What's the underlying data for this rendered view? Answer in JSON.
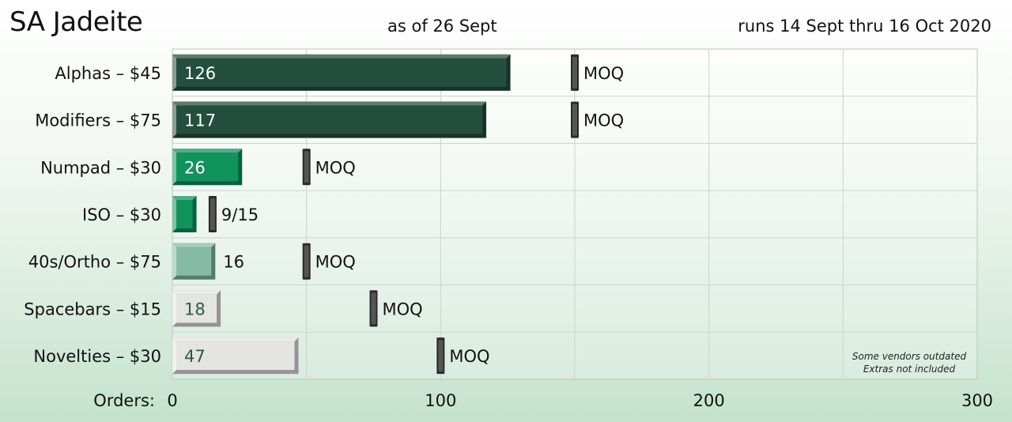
{
  "header": {
    "title": "SA Jadeite",
    "as_of": "as of 26 Sept",
    "runs": "runs 14 Sept thru 16 Oct 2020"
  },
  "chart_data": {
    "type": "bar",
    "orientation": "horizontal",
    "xlabel": "Orders:",
    "xlim": [
      0,
      300
    ],
    "x_ticks": [
      0,
      100,
      200,
      300
    ],
    "grid": true,
    "categories": [
      "Alphas – $45",
      "Modifiers – $75",
      "Numpad – $30",
      "ISO – $30",
      "40s/Ortho – $75",
      "Spacebars – $15",
      "Novelties – $30"
    ],
    "values": [
      126,
      117,
      26,
      9,
      16,
      18,
      47
    ],
    "value_labels": [
      "126",
      "117",
      "26",
      "",
      "16",
      "18",
      "47"
    ],
    "moq": [
      150,
      150,
      50,
      15,
      50,
      75,
      100
    ],
    "moq_labels": [
      "MOQ",
      "MOQ",
      "MOQ",
      "9/15",
      "MOQ",
      "MOQ",
      "MOQ"
    ],
    "bar_colors": [
      "#244f3f",
      "#244f3f",
      "#10935c",
      "#10935c",
      "#86bca6",
      "#e4e4e2",
      "#e4e4e2"
    ],
    "label_inside": [
      true,
      true,
      true,
      false,
      false,
      true,
      true
    ],
    "label_colors": [
      "#ffffff",
      "#ffffff",
      "#ffffff",
      "#111111",
      "#111111",
      "#2b5a48",
      "#2b5a48"
    ],
    "notes": [
      "Some vendors outdated",
      "Extras not included"
    ]
  }
}
